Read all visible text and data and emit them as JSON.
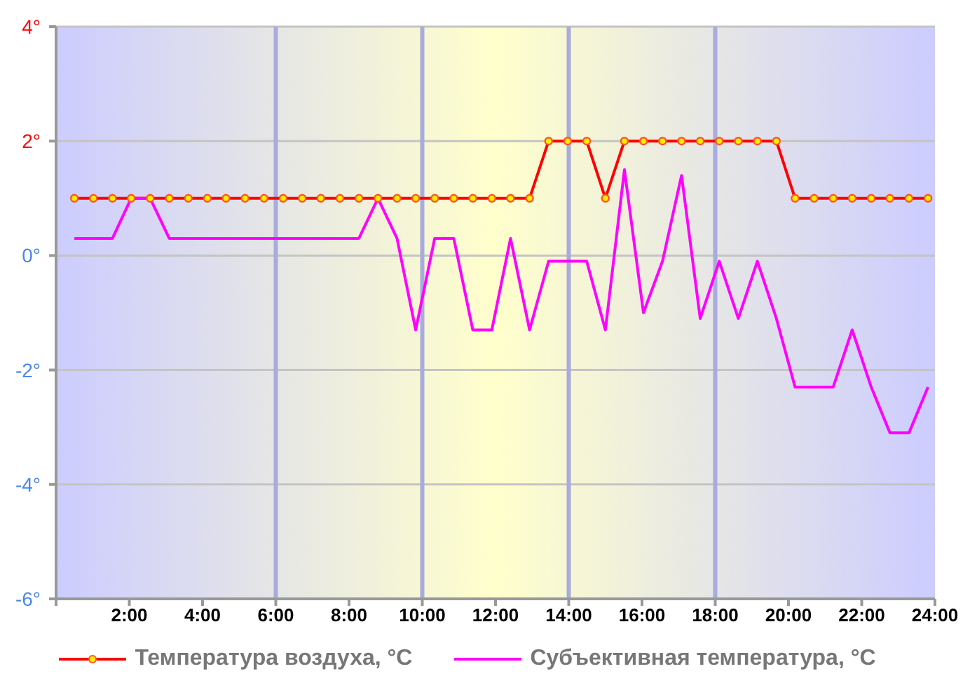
{
  "chart_data": {
    "type": "line",
    "x": [
      0.5,
      1.02,
      1.54,
      2.05,
      2.57,
      3.09,
      3.61,
      4.13,
      4.64,
      5.16,
      5.68,
      6.2,
      6.72,
      7.23,
      7.75,
      8.27,
      8.79,
      9.31,
      9.82,
      10.34,
      10.86,
      11.38,
      11.9,
      12.41,
      12.93,
      13.45,
      13.97,
      14.49,
      15.0,
      15.52,
      16.04,
      16.56,
      17.08,
      17.59,
      18.11,
      18.63,
      19.15,
      19.67,
      20.18,
      20.7,
      21.22,
      21.74,
      22.26,
      22.77,
      23.29,
      23.81
    ],
    "series": [
      {
        "name": "Температура воздуха, °C",
        "color": "#ff0000",
        "marker": "circle",
        "values": [
          1,
          1,
          1,
          1,
          1,
          1,
          1,
          1,
          1,
          1,
          1,
          1,
          1,
          1,
          1,
          1,
          1,
          1,
          1,
          1,
          1,
          1,
          1,
          1,
          1,
          2,
          2,
          2,
          1,
          2,
          2,
          2,
          2,
          2,
          2,
          2,
          2,
          2,
          1,
          1,
          1,
          1,
          1,
          1,
          1,
          1
        ]
      },
      {
        "name": "Субъективная температура, °C",
        "color": "#ff00ff",
        "marker": "none",
        "values": [
          0.3,
          0.3,
          0.3,
          1,
          1,
          0.3,
          0.3,
          0.3,
          0.3,
          0.3,
          0.3,
          0.3,
          0.3,
          0.3,
          0.3,
          0.3,
          1,
          0.3,
          -1.3,
          0.3,
          0.3,
          -1.3,
          -1.3,
          0.3,
          -1.3,
          -0.1,
          -0.1,
          -0.1,
          -1.3,
          1.5,
          -1.0,
          -0.1,
          1.4,
          -1.1,
          -0.1,
          -1.1,
          -0.1,
          -1.1,
          -2.3,
          -2.3,
          -2.3,
          -1.3,
          -2.3,
          -3.1,
          -3.1,
          -2.3
        ]
      }
    ],
    "xlim": [
      0,
      24
    ],
    "xticks": [
      {
        "value": 0,
        "label": null
      },
      {
        "value": 2,
        "label": "2:00"
      },
      {
        "value": 4,
        "label": "4:00"
      },
      {
        "value": 6,
        "label": "6:00"
      },
      {
        "value": 8,
        "label": "8:00"
      },
      {
        "value": 10,
        "label": "10:00"
      },
      {
        "value": 12,
        "label": "12:00"
      },
      {
        "value": 14,
        "label": "14:00"
      },
      {
        "value": 16,
        "label": "16:00"
      },
      {
        "value": 18,
        "label": "18:00"
      },
      {
        "value": 20,
        "label": "20:00"
      },
      {
        "value": 22,
        "label": "22:00"
      },
      {
        "value": 24,
        "label": "24:00"
      }
    ],
    "ylim": [
      -6,
      4
    ],
    "yticks": [
      {
        "value": -6,
        "label": "-6°"
      },
      {
        "value": -4,
        "label": "-4°"
      },
      {
        "value": -2,
        "label": "-2°"
      },
      {
        "value": 0,
        "label": "0°"
      },
      {
        "value": 2,
        "label": "2°"
      },
      {
        "value": 4,
        "label": "4°"
      }
    ],
    "ref_lines": [
      {
        "axis": "x",
        "value": 6,
        "color": "#a8acdc"
      },
      {
        "axis": "x",
        "value": 10,
        "color": "#a8acdc"
      },
      {
        "axis": "x",
        "value": 14,
        "color": "#a8acdc"
      },
      {
        "axis": "x",
        "value": 18,
        "color": "#a8acdc"
      }
    ],
    "grid": "y",
    "legend": "bottom"
  }
}
